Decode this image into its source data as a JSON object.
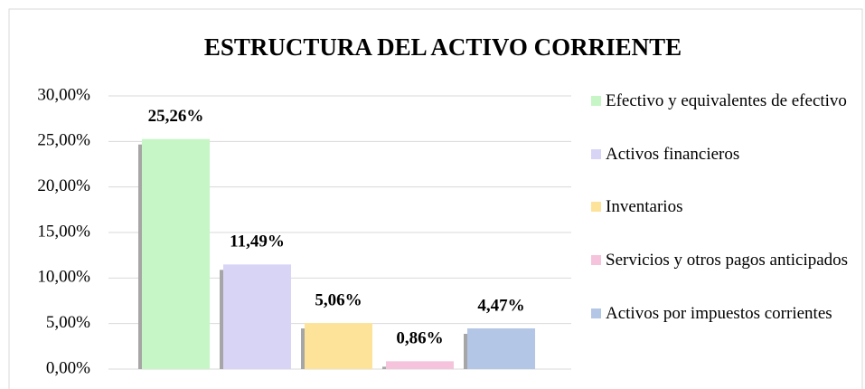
{
  "chart_data": {
    "type": "bar",
    "title": "ESTRUCTURA DEL ACTIVO CORRIENTE",
    "series": [
      {
        "name": "Efectivo y equivalentes de efectivo",
        "color": "#c6f5c6",
        "values": [
          25.26
        ],
        "value_labels": [
          "25,26%"
        ]
      },
      {
        "name": "Activos financieros",
        "color": "#d8d4f6",
        "values": [
          11.49
        ],
        "value_labels": [
          "11,49%"
        ]
      },
      {
        "name": "Inventarios",
        "color": "#fde39a",
        "values": [
          5.06
        ],
        "value_labels": [
          "5,06%"
        ]
      },
      {
        "name": "Servicios y otros pagos anticipados",
        "color": "#f6c3dd",
        "values": [
          0.86
        ],
        "value_labels": [
          "0,86%"
        ]
      },
      {
        "name": "Activos por impuestos corrientes",
        "color": "#b3c6e6",
        "values": [
          4.47
        ],
        "value_labels": [
          "4,47%"
        ]
      }
    ],
    "ylim": [
      0,
      30
    ],
    "yticks": [
      {
        "value": 0,
        "label": "0,00%"
      },
      {
        "value": 5,
        "label": "5,00%"
      },
      {
        "value": 10,
        "label": "10,00%"
      },
      {
        "value": 15,
        "label": "15,00%"
      },
      {
        "value": 20,
        "label": "20,00%"
      },
      {
        "value": 25,
        "label": "25,00%"
      },
      {
        "value": 30,
        "label": "30,00%"
      }
    ],
    "grid": true,
    "legend": "right"
  }
}
